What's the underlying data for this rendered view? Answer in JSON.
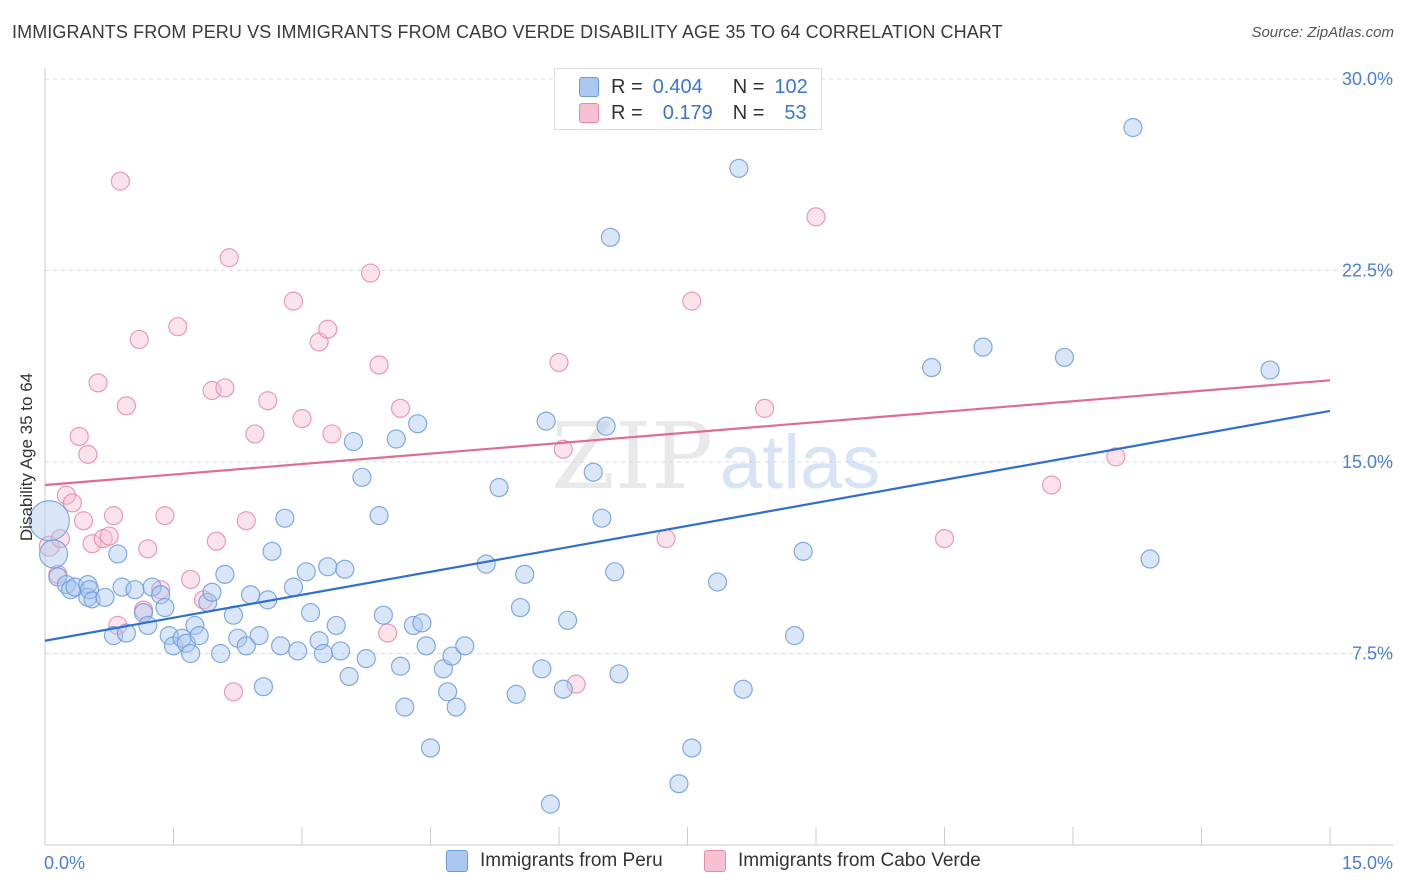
{
  "title": "IMMIGRANTS FROM PERU VS IMMIGRANTS FROM CABO VERDE DISABILITY AGE 35 TO 64 CORRELATION CHART",
  "source": "Source: ZipAtlas.com",
  "watermark": {
    "zip": "ZIP",
    "atlas": "atlas"
  },
  "legend_top": {
    "rows": [
      {
        "r_label": "R =",
        "r_value": "0.404",
        "n_label": "N =",
        "n_value": "102",
        "color": "#aac8f0",
        "border": "#6d9be0"
      },
      {
        "r_label": "R =",
        "r_value": "0.179",
        "n_label": "N =",
        "n_value": "53",
        "color": "#f6c2d2",
        "border": "#e88aa8"
      }
    ]
  },
  "chart_data": {
    "type": "scatter",
    "title": "IMMIGRANTS FROM PERU VS IMMIGRANTS FROM CABO VERDE DISABILITY AGE 35 TO 64 CORRELATION CHART",
    "xlabel": "",
    "ylabel": "Disability Age 35 to 64",
    "xlim": [
      0,
      15
    ],
    "ylim": [
      0,
      30
    ],
    "x_tick_labels": [
      "0.0%",
      "15.0%"
    ],
    "y_ticks": [
      7.5,
      15.0,
      22.5,
      30.0
    ],
    "y_tick_labels": [
      "7.5%",
      "15.0%",
      "22.5%",
      "30.0%"
    ],
    "grid": true,
    "legend_position": "bottom",
    "series": [
      {
        "name": "Immigrants from Peru",
        "color": "#6d9be0",
        "fill": "#aac8f0",
        "trend_color": "#2f6fd0",
        "trend": {
          "x": [
            0,
            15
          ],
          "y": [
            8.0,
            17.0
          ]
        },
        "points": [
          [
            0.05,
            12.7,
            20
          ],
          [
            0.1,
            11.4,
            14
          ],
          [
            0.15,
            10.5,
            9
          ],
          [
            0.25,
            10.2,
            9
          ],
          [
            0.3,
            10.0,
            9
          ],
          [
            0.35,
            10.1,
            9
          ],
          [
            0.5,
            10.2,
            9
          ],
          [
            0.5,
            9.7,
            9
          ],
          [
            0.52,
            10.0,
            9
          ],
          [
            0.55,
            9.6,
            8
          ],
          [
            0.7,
            9.7,
            9
          ],
          [
            0.8,
            8.2,
            9
          ],
          [
            0.85,
            11.4,
            9
          ],
          [
            0.9,
            10.1,
            9
          ],
          [
            0.95,
            8.3,
            9
          ],
          [
            1.05,
            10.0,
            9
          ],
          [
            1.15,
            9.1,
            9
          ],
          [
            1.2,
            8.6,
            9
          ],
          [
            1.25,
            10.1,
            9
          ],
          [
            1.35,
            9.8,
            9
          ],
          [
            1.4,
            9.3,
            9
          ],
          [
            1.45,
            8.2,
            9
          ],
          [
            1.5,
            7.8,
            9
          ],
          [
            1.6,
            8.1,
            9
          ],
          [
            1.65,
            7.9,
            9
          ],
          [
            1.7,
            7.5,
            9
          ],
          [
            1.75,
            8.6,
            9
          ],
          [
            1.8,
            8.2,
            9
          ],
          [
            1.9,
            9.5,
            9
          ],
          [
            1.95,
            9.9,
            9
          ],
          [
            2.05,
            7.5,
            9
          ],
          [
            2.1,
            10.6,
            9
          ],
          [
            2.2,
            9.0,
            9
          ],
          [
            2.25,
            8.1,
            9
          ],
          [
            2.35,
            7.8,
            9
          ],
          [
            2.4,
            9.8,
            9
          ],
          [
            2.5,
            8.2,
            9
          ],
          [
            2.55,
            6.2,
            9
          ],
          [
            2.6,
            9.6,
            9
          ],
          [
            2.65,
            11.5,
            9
          ],
          [
            2.75,
            7.8,
            9
          ],
          [
            2.8,
            12.8,
            9
          ],
          [
            2.9,
            10.1,
            9
          ],
          [
            2.95,
            7.6,
            9
          ],
          [
            3.05,
            10.7,
            9
          ],
          [
            3.1,
            9.1,
            9
          ],
          [
            3.2,
            8.0,
            9
          ],
          [
            3.25,
            7.5,
            9
          ],
          [
            3.3,
            10.9,
            9
          ],
          [
            3.4,
            8.6,
            9
          ],
          [
            3.45,
            7.6,
            9
          ],
          [
            3.5,
            10.8,
            9
          ],
          [
            3.55,
            6.6,
            9
          ],
          [
            3.6,
            15.8,
            9
          ],
          [
            3.7,
            14.4,
            9
          ],
          [
            3.75,
            7.3,
            9
          ],
          [
            3.9,
            12.9,
            9
          ],
          [
            3.95,
            9.0,
            9
          ],
          [
            4.1,
            15.9,
            9
          ],
          [
            4.15,
            7.0,
            9
          ],
          [
            4.2,
            5.4,
            9
          ],
          [
            4.3,
            8.6,
            9
          ],
          [
            4.35,
            16.5,
            9
          ],
          [
            4.4,
            8.7,
            9
          ],
          [
            4.45,
            7.8,
            9
          ],
          [
            4.5,
            3.8,
            9
          ],
          [
            4.65,
            6.9,
            9
          ],
          [
            4.7,
            6.0,
            9
          ],
          [
            4.75,
            7.4,
            9
          ],
          [
            4.8,
            5.4,
            9
          ],
          [
            4.9,
            7.8,
            9
          ],
          [
            5.15,
            11.0,
            9
          ],
          [
            5.3,
            14.0,
            9
          ],
          [
            5.5,
            5.9,
            9
          ],
          [
            5.55,
            9.3,
            9
          ],
          [
            5.6,
            10.6,
            9
          ],
          [
            5.8,
            6.9,
            9
          ],
          [
            5.85,
            16.6,
            9
          ],
          [
            5.9,
            1.6,
            9
          ],
          [
            6.05,
            6.1,
            9
          ],
          [
            6.1,
            8.8,
            9
          ],
          [
            6.4,
            14.6,
            9
          ],
          [
            6.5,
            12.8,
            9
          ],
          [
            6.55,
            16.4,
            9
          ],
          [
            6.6,
            23.8,
            9
          ],
          [
            6.65,
            10.7,
            9
          ],
          [
            6.7,
            6.7,
            9
          ],
          [
            7.4,
            2.4,
            9
          ],
          [
            7.55,
            3.8,
            9
          ],
          [
            7.85,
            10.3,
            9
          ],
          [
            8.1,
            26.5,
            9
          ],
          [
            8.15,
            6.1,
            9
          ],
          [
            8.75,
            8.2,
            9
          ],
          [
            8.85,
            11.5,
            9
          ],
          [
            10.35,
            18.7,
            9
          ],
          [
            10.95,
            19.5,
            9
          ],
          [
            11.9,
            19.1,
            9
          ],
          [
            12.7,
            28.1,
            9
          ],
          [
            12.9,
            11.2,
            9
          ],
          [
            14.3,
            18.6,
            9
          ]
        ]
      },
      {
        "name": "Immigrants from Cabo Verde",
        "color": "#e88aa8",
        "fill": "#f6c2d2",
        "trend_color": "#e06c92",
        "trend": {
          "x": [
            0,
            15
          ],
          "y": [
            14.1,
            18.2
          ]
        },
        "points": [
          [
            0.05,
            11.7,
            10
          ],
          [
            0.15,
            10.6,
            9
          ],
          [
            0.18,
            12.0,
            9
          ],
          [
            0.25,
            13.7,
            9
          ],
          [
            0.32,
            13.4,
            9
          ],
          [
            0.4,
            16.0,
            9
          ],
          [
            0.45,
            12.7,
            9
          ],
          [
            0.5,
            15.3,
            9
          ],
          [
            0.55,
            11.8,
            9
          ],
          [
            0.62,
            18.1,
            9
          ],
          [
            0.68,
            12.0,
            9
          ],
          [
            0.75,
            12.1,
            9
          ],
          [
            0.8,
            12.9,
            9
          ],
          [
            0.85,
            8.6,
            9
          ],
          [
            0.88,
            26.0,
            9
          ],
          [
            0.95,
            17.2,
            9
          ],
          [
            1.1,
            19.8,
            9
          ],
          [
            1.15,
            9.2,
            9
          ],
          [
            1.2,
            11.6,
            9
          ],
          [
            1.35,
            10.0,
            9
          ],
          [
            1.4,
            12.9,
            9
          ],
          [
            1.55,
            20.3,
            9
          ],
          [
            1.7,
            10.4,
            9
          ],
          [
            1.85,
            9.6,
            9
          ],
          [
            1.95,
            17.8,
            9
          ],
          [
            2.0,
            11.9,
            9
          ],
          [
            2.1,
            17.9,
            9
          ],
          [
            2.15,
            23.0,
            9
          ],
          [
            2.2,
            6.0,
            9
          ],
          [
            2.35,
            12.7,
            9
          ],
          [
            2.45,
            16.1,
            9
          ],
          [
            2.6,
            17.4,
            9
          ],
          [
            2.9,
            21.3,
            9
          ],
          [
            3.0,
            16.7,
            9
          ],
          [
            3.2,
            19.7,
            9
          ],
          [
            3.3,
            20.2,
            9
          ],
          [
            3.35,
            16.1,
            9
          ],
          [
            3.8,
            22.4,
            9
          ],
          [
            3.9,
            18.8,
            9
          ],
          [
            4.0,
            8.3,
            9
          ],
          [
            4.15,
            17.1,
            9
          ],
          [
            6.0,
            18.9,
            9
          ],
          [
            6.05,
            15.5,
            9
          ],
          [
            6.2,
            6.3,
            9
          ],
          [
            7.25,
            12.0,
            9
          ],
          [
            7.55,
            21.3,
            9
          ],
          [
            8.4,
            17.1,
            9
          ],
          [
            9.0,
            24.6,
            9
          ],
          [
            10.5,
            12.0,
            9
          ],
          [
            11.75,
            14.1,
            9
          ],
          [
            12.5,
            15.2,
            9
          ]
        ]
      }
    ]
  },
  "legend_bottom": {
    "items": [
      {
        "label": "Immigrants from Peru",
        "color": "#aac8f0",
        "border": "#6d9be0"
      },
      {
        "label": "Immigrants from Cabo Verde",
        "color": "#f6c2d2",
        "border": "#e88aa8"
      }
    ]
  }
}
